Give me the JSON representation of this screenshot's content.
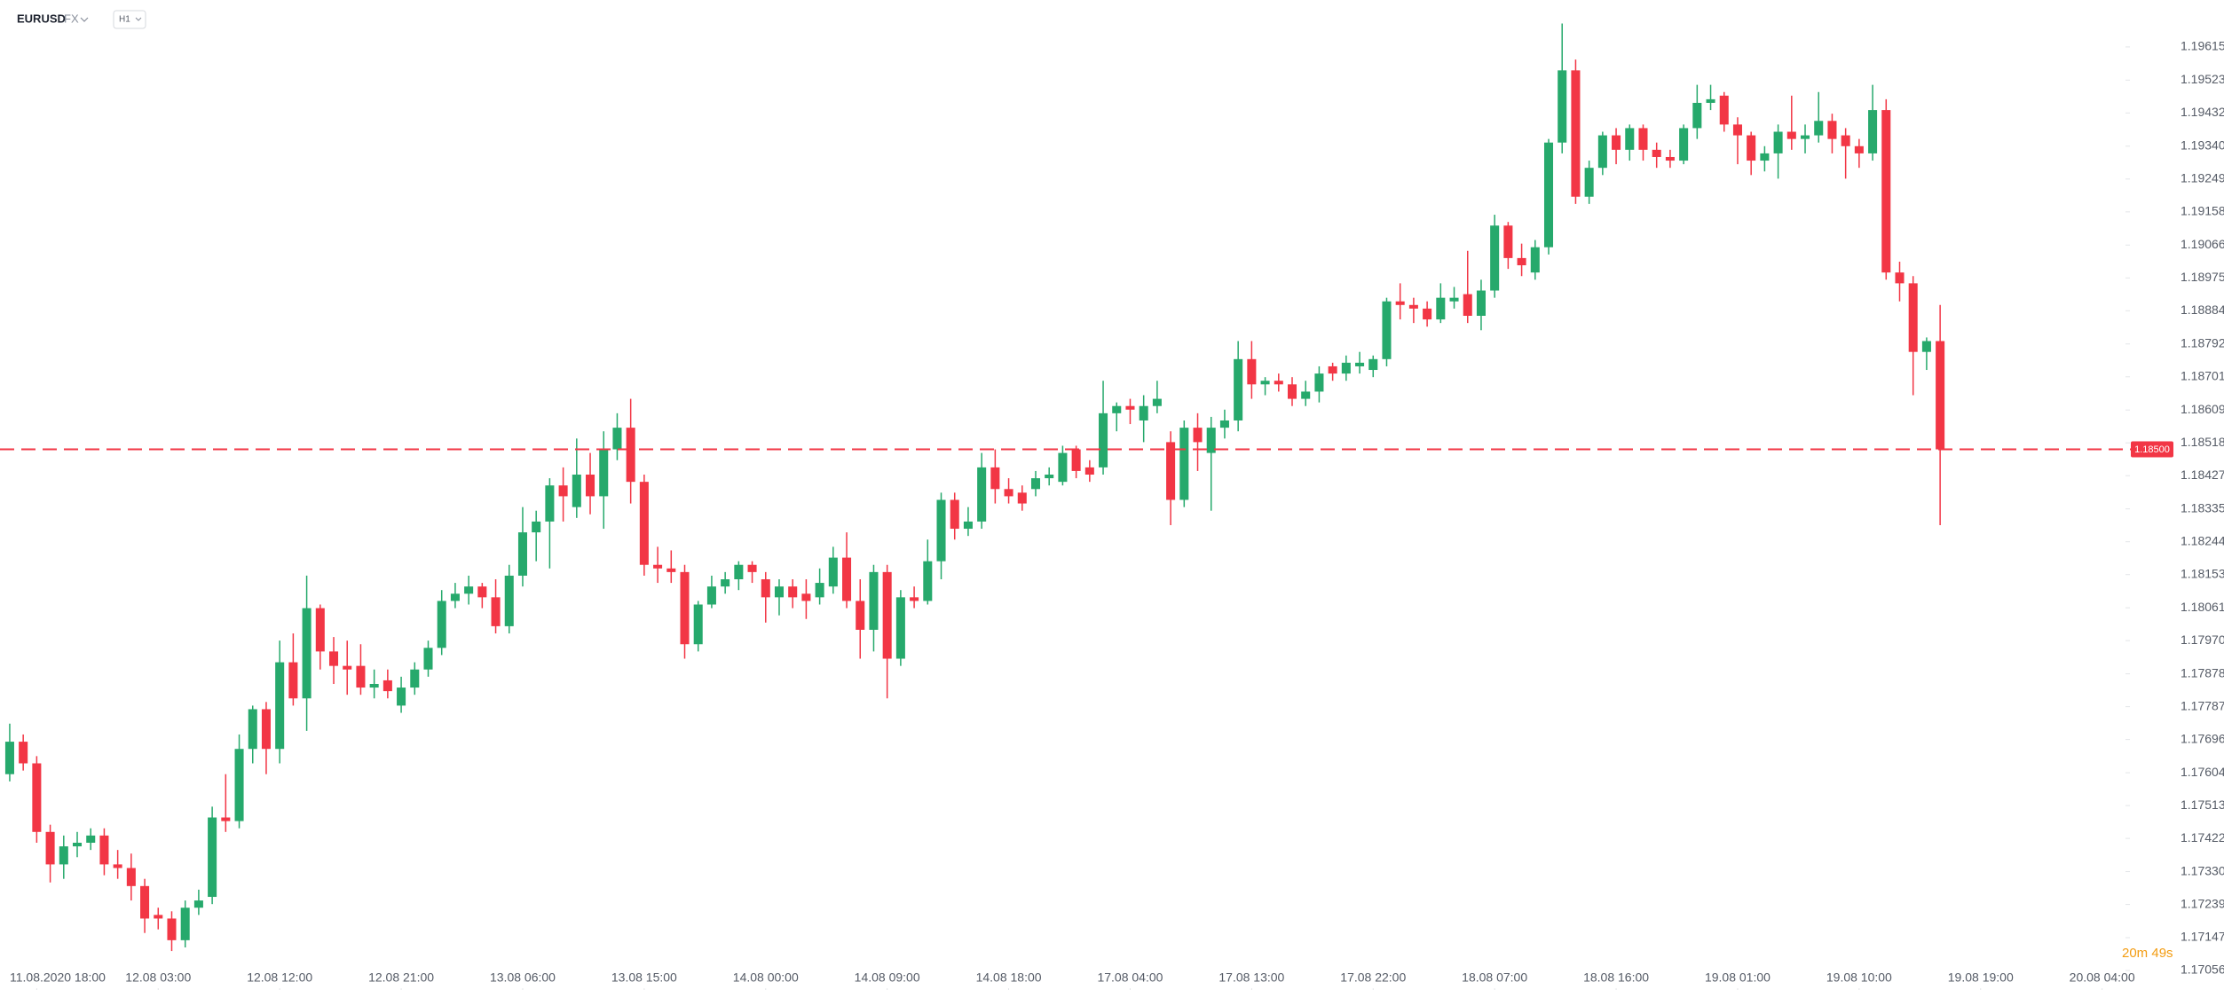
{
  "chart_data": {
    "type": "candlestick",
    "symbol": "EURUSD",
    "market": "FX",
    "interval": "H1",
    "timer": "20m 49s",
    "up_color": "#26a96c",
    "down_color": "#f23645",
    "open": [
      1.176,
      1.1769,
      1.1763,
      1.1744,
      1.1735,
      1.174,
      1.1741,
      1.1743,
      1.1735,
      1.1734,
      1.1729,
      1.1721,
      1.172,
      1.1714,
      1.1723,
      1.1726,
      1.1748,
      1.1747,
      1.1767,
      1.1778,
      1.1767,
      1.1791,
      1.1781,
      1.1806,
      1.1794,
      1.179,
      1.179,
      1.1784,
      1.1786,
      1.1779,
      1.1784,
      1.1789,
      1.1795,
      1.1808,
      1.181,
      1.1812,
      1.1809,
      1.1801,
      1.1815,
      1.1827,
      1.183,
      1.184,
      1.1834,
      1.1843,
      1.1837,
      1.185,
      1.1856,
      1.1841,
      1.1818,
      1.1817,
      1.1816,
      1.1796,
      1.1807,
      1.1812,
      1.1814,
      1.1818,
      1.1814,
      1.1809,
      1.1812,
      1.181,
      1.1809,
      1.1812,
      1.182,
      1.1808,
      1.18,
      1.1816,
      1.1792,
      1.1809,
      1.1808,
      1.1819,
      1.1836,
      1.1828,
      1.183,
      1.1845,
      1.1839,
      1.1838,
      1.1839,
      1.1842,
      1.1841,
      1.185,
      1.1845,
      1.1845,
      1.186,
      1.1862,
      1.1858,
      1.1862,
      1.1852,
      1.1836,
      1.1856,
      1.1849,
      1.1856,
      1.1858,
      1.1875,
      1.1868,
      1.1869,
      1.1868,
      1.1864,
      1.1866,
      1.1873,
      1.1871,
      1.1873,
      1.1872,
      1.1875,
      1.1891,
      1.189,
      1.1889,
      1.1886,
      1.1891,
      1.1893,
      1.1887,
      1.1894,
      1.1912,
      1.1903,
      1.1899,
      1.1906,
      1.1935,
      1.1955,
      1.192,
      1.1928,
      1.1937,
      1.1933,
      1.1939,
      1.1933,
      1.1931,
      1.193,
      1.1939,
      1.1946,
      1.1948,
      1.194,
      1.1937,
      1.193,
      1.1932,
      1.1938,
      1.1936,
      1.1937,
      1.1941,
      1.1937,
      1.1934,
      1.1932,
      1.1944,
      1.1899,
      1.1896,
      1.1877,
      1.188
    ],
    "high": [
      1.1774,
      1.1771,
      1.1765,
      1.1746,
      1.1743,
      1.1744,
      1.1745,
      1.1745,
      1.1739,
      1.1738,
      1.1731,
      1.1723,
      1.1722,
      1.1725,
      1.1728,
      1.1751,
      1.176,
      1.1771,
      1.1779,
      1.178,
      1.1797,
      1.1799,
      1.1815,
      1.1807,
      1.1798,
      1.1797,
      1.1796,
      1.1789,
      1.1789,
      1.1787,
      1.1791,
      1.1797,
      1.1811,
      1.1813,
      1.1815,
      1.1813,
      1.1814,
      1.1818,
      1.1834,
      1.1833,
      1.1842,
      1.1845,
      1.1853,
      1.1849,
      1.1855,
      1.186,
      1.1864,
      1.1843,
      1.1823,
      1.1822,
      1.1818,
      1.1808,
      1.1815,
      1.1816,
      1.1819,
      1.1819,
      1.1816,
      1.1814,
      1.1814,
      1.1814,
      1.1817,
      1.1823,
      1.1827,
      1.1814,
      1.1818,
      1.1818,
      1.1811,
      1.1812,
      1.1825,
      1.1838,
      1.1838,
      1.1834,
      1.1849,
      1.185,
      1.1842,
      1.184,
      1.1844,
      1.1845,
      1.1851,
      1.1851,
      1.1847,
      1.1869,
      1.1863,
      1.1864,
      1.1865,
      1.1869,
      1.1855,
      1.1858,
      1.186,
      1.1859,
      1.1861,
      1.188,
      1.188,
      1.187,
      1.1871,
      1.187,
      1.1869,
      1.1873,
      1.1874,
      1.1876,
      1.1877,
      1.1876,
      1.1892,
      1.1896,
      1.1892,
      1.1891,
      1.1896,
      1.1895,
      1.1905,
      1.1897,
      1.1915,
      1.1913,
      1.1907,
      1.1908,
      1.1936,
      1.1968,
      1.1958,
      1.193,
      1.1938,
      1.1939,
      1.194,
      1.194,
      1.1935,
      1.1933,
      1.194,
      1.1951,
      1.1951,
      1.1949,
      1.1942,
      1.1938,
      1.1934,
      1.194,
      1.1948,
      1.194,
      1.1949,
      1.1943,
      1.1939,
      1.1936,
      1.1951,
      1.1947,
      1.1902,
      1.1898,
      1.1881,
      1.189
    ],
    "low": [
      1.1758,
      1.1761,
      1.1741,
      1.173,
      1.1731,
      1.1737,
      1.1739,
      1.1732,
      1.1731,
      1.1725,
      1.1716,
      1.1717,
      1.1711,
      1.1712,
      1.1721,
      1.1724,
      1.1744,
      1.1745,
      1.1763,
      1.176,
      1.1763,
      1.1779,
      1.1772,
      1.1789,
      1.1785,
      1.1782,
      1.1782,
      1.1781,
      1.1781,
      1.1777,
      1.1782,
      1.1787,
      1.1793,
      1.1806,
      1.1807,
      1.1806,
      1.1799,
      1.1799,
      1.1812,
      1.1819,
      1.1817,
      1.183,
      1.1831,
      1.1832,
      1.1828,
      1.1847,
      1.1835,
      1.1815,
      1.1813,
      1.1813,
      1.1792,
      1.1794,
      1.1806,
      1.181,
      1.1811,
      1.1813,
      1.1802,
      1.1804,
      1.1806,
      1.1803,
      1.1807,
      1.181,
      1.1806,
      1.1792,
      1.1794,
      1.1781,
      1.179,
      1.1806,
      1.1807,
      1.1814,
      1.1825,
      1.1826,
      1.1828,
      1.1835,
      1.1835,
      1.1833,
      1.1837,
      1.184,
      1.184,
      1.1842,
      1.1841,
      1.1843,
      1.1855,
      1.1857,
      1.1852,
      1.186,
      1.1829,
      1.1834,
      1.1844,
      1.1833,
      1.1853,
      1.1855,
      1.1864,
      1.1865,
      1.1866,
      1.1862,
      1.1862,
      1.1863,
      1.1869,
      1.1869,
      1.1871,
      1.187,
      1.1873,
      1.1886,
      1.1885,
      1.1884,
      1.1885,
      1.1889,
      1.1885,
      1.1883,
      1.1892,
      1.19,
      1.1898,
      1.1897,
      1.1904,
      1.1932,
      1.1918,
      1.1918,
      1.1926,
      1.1929,
      1.193,
      1.193,
      1.1928,
      1.1928,
      1.1929,
      1.1936,
      1.1944,
      1.1938,
      1.1929,
      1.1926,
      1.1927,
      1.1925,
      1.1933,
      1.1932,
      1.1935,
      1.1932,
      1.1925,
      1.1928,
      1.193,
      1.1897,
      1.1891,
      1.1865,
      1.1872,
      1.1829
    ],
    "close": [
      1.1769,
      1.1763,
      1.1744,
      1.1735,
      1.174,
      1.1741,
      1.1743,
      1.1735,
      1.1734,
      1.1729,
      1.172,
      1.172,
      1.1714,
      1.1723,
      1.1725,
      1.1748,
      1.1747,
      1.1767,
      1.1778,
      1.1767,
      1.1791,
      1.1781,
      1.1806,
      1.1794,
      1.179,
      1.1789,
      1.1784,
      1.1785,
      1.1783,
      1.1784,
      1.1789,
      1.1795,
      1.1808,
      1.181,
      1.1812,
      1.1809,
      1.1801,
      1.1815,
      1.1827,
      1.183,
      1.184,
      1.1837,
      1.1843,
      1.1837,
      1.185,
      1.1856,
      1.1841,
      1.1818,
      1.1817,
      1.1816,
      1.1796,
      1.1807,
      1.1812,
      1.1814,
      1.1818,
      1.1816,
      1.1809,
      1.1812,
      1.1809,
      1.1808,
      1.1813,
      1.182,
      1.1808,
      1.18,
      1.1816,
      1.1792,
      1.1809,
      1.1808,
      1.1819,
      1.1836,
      1.1828,
      1.183,
      1.1845,
      1.1839,
      1.1837,
      1.1835,
      1.1842,
      1.1843,
      1.1849,
      1.1844,
      1.1843,
      1.186,
      1.1862,
      1.1861,
      1.1862,
      1.1864,
      1.1836,
      1.1856,
      1.1852,
      1.1856,
      1.1858,
      1.1875,
      1.1868,
      1.1869,
      1.1868,
      1.1864,
      1.1866,
      1.1871,
      1.1871,
      1.1874,
      1.1874,
      1.1875,
      1.1891,
      1.189,
      1.1889,
      1.1886,
      1.1892,
      1.1892,
      1.1887,
      1.1894,
      1.1912,
      1.1903,
      1.1901,
      1.1906,
      1.1935,
      1.1955,
      1.192,
      1.1928,
      1.1937,
      1.1933,
      1.1939,
      1.1933,
      1.1931,
      1.193,
      1.1939,
      1.1946,
      1.1947,
      1.194,
      1.1937,
      1.193,
      1.1932,
      1.1938,
      1.1936,
      1.1937,
      1.1941,
      1.1936,
      1.1934,
      1.1932,
      1.1944,
      1.1899,
      1.1896,
      1.1877,
      1.188,
      1.185
    ],
    "xlim": [
      -0.72,
      156.6
    ],
    "xticks": [
      {
        "value": 2,
        "label": "11.08.2020 18:00"
      },
      {
        "value": 11,
        "label": "12.08 03:00"
      },
      {
        "value": 20,
        "label": "12.08 12:00"
      },
      {
        "value": 29,
        "label": "12.08 21:00"
      },
      {
        "value": 38,
        "label": "13.08 06:00"
      },
      {
        "value": 47,
        "label": "13.08 15:00"
      },
      {
        "value": 56,
        "label": "14.08 00:00"
      },
      {
        "value": 65,
        "label": "14.08 09:00"
      },
      {
        "value": 74,
        "label": "14.08 18:00"
      },
      {
        "value": 83,
        "label": "17.08 04:00"
      },
      {
        "value": 92,
        "label": "17.08 13:00"
      },
      {
        "value": 101,
        "label": "17.08 22:00"
      },
      {
        "value": 110,
        "label": "18.08 07:00"
      },
      {
        "value": 119,
        "label": "18.08 16:00"
      },
      {
        "value": 128,
        "label": "19.08 01:00"
      },
      {
        "value": 137,
        "label": "19.08 10:00"
      },
      {
        "value": 146,
        "label": "19.08 19:00"
      },
      {
        "value": 155,
        "label": "20.08 04:00"
      }
    ],
    "ylim": [
      1.17002,
      1.19745
    ],
    "yticks": [
      1.19615,
      1.19523,
      1.19432,
      {
        "value": 1.1934,
        "label": "1.19340"
      },
      1.19249,
      1.19158,
      1.19066,
      1.18975,
      1.18884,
      1.18792,
      1.18701,
      1.18609,
      1.18518,
      1.18427,
      1.18335,
      1.18244,
      1.18153,
      1.18061,
      {
        "value": 1.1797,
        "label": "1.17970"
      },
      1.17878,
      1.17787,
      1.17696,
      1.17604,
      1.17513,
      1.17422,
      {
        "value": 1.1733,
        "label": "1.17330"
      },
      1.17239,
      1.17147,
      1.17056
    ],
    "grid": false,
    "current_price": {
      "value": 1.185,
      "label": "1.18500",
      "color": "#f23645"
    }
  }
}
